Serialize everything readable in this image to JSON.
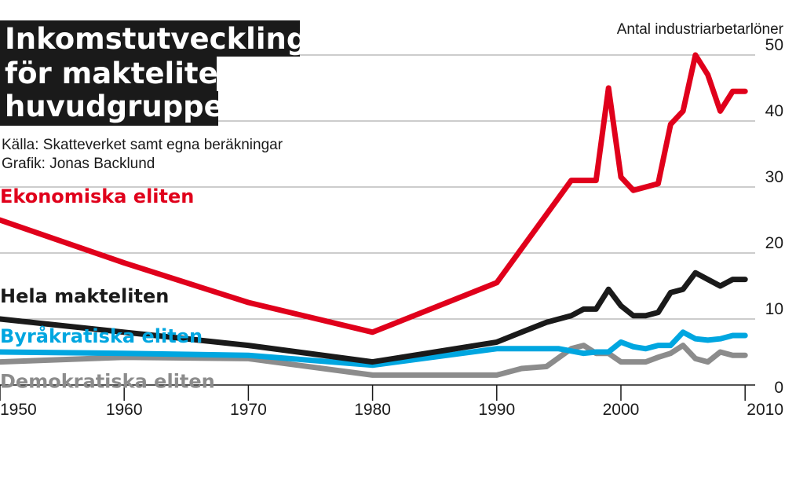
{
  "title_lines": [
    "Inkomstutvecklingen",
    "för maktelitens",
    "huvudgrupper"
  ],
  "source_lines": [
    "Källa: Skatteverket samt egna beräkningar",
    "Grafik: Jonas Backlund"
  ],
  "chart_data": {
    "type": "line",
    "title": "Inkomstutvecklingen för maktelitens huvudgrupper",
    "ylabel": "Antal industriarbetarlöner",
    "xlabel": "",
    "xlim": [
      1950,
      2011
    ],
    "ylim": [
      0,
      50
    ],
    "xticks": [
      "1950",
      "1960",
      "1970",
      "1980",
      "1990",
      "2000",
      "2010"
    ],
    "yticks": [
      "0",
      "10",
      "20",
      "30",
      "40",
      "50"
    ],
    "grid": true,
    "series": [
      {
        "name": "Demokratiska eliten",
        "color": "#8c8c8c",
        "x": [
          1950,
          1960,
          1970,
          1980,
          1990,
          1992,
          1994,
          1996,
          1997,
          1998,
          1999,
          2000,
          2001,
          2002,
          2003,
          2004,
          2005,
          2006,
          2007,
          2008,
          2009,
          2010
        ],
        "y": [
          3.5,
          4.2,
          4.0,
          1.5,
          1.5,
          2.5,
          2.8,
          5.5,
          6.0,
          4.8,
          4.8,
          3.5,
          3.5,
          3.5,
          4.2,
          4.8,
          6.0,
          4.0,
          3.5,
          5.0,
          4.5,
          4.5
        ]
      },
      {
        "name": "Byråkratiska eliten",
        "color": "#00a6e0",
        "x": [
          1950,
          1960,
          1970,
          1980,
          1990,
          1995,
          1997,
          1998,
          1999,
          2000,
          2001,
          2002,
          2003,
          2004,
          2005,
          2006,
          2007,
          2008,
          2009,
          2010
        ],
        "y": [
          5.0,
          4.8,
          4.5,
          3.0,
          5.5,
          5.5,
          4.8,
          5.0,
          5.0,
          6.5,
          5.8,
          5.5,
          6.0,
          6.0,
          8.0,
          7.0,
          6.8,
          7.0,
          7.5,
          7.5
        ]
      },
      {
        "name": "Hela makteliten",
        "color": "#1a1a1a",
        "x": [
          1950,
          1960,
          1970,
          1980,
          1990,
          1992,
          1994,
          1996,
          1997,
          1998,
          1999,
          2000,
          2001,
          2002,
          2003,
          2004,
          2005,
          2006,
          2007,
          2008,
          2009,
          2010
        ],
        "y": [
          10.0,
          8.0,
          6.0,
          3.5,
          6.5,
          8.0,
          9.5,
          10.5,
          11.5,
          11.5,
          14.5,
          12.0,
          10.5,
          10.5,
          11.0,
          14.0,
          14.5,
          17.0,
          16.0,
          15.0,
          16.0,
          16.0
        ]
      },
      {
        "name": "Ekonomiska eliten",
        "color": "#e0001b",
        "x": [
          1950,
          1960,
          1970,
          1980,
          1990,
          1996,
          1997,
          1998,
          1999,
          2000,
          2001,
          2002,
          2003,
          2004,
          2005,
          2006,
          2007,
          2008,
          2009,
          2010
        ],
        "y": [
          25.0,
          18.5,
          12.5,
          8.0,
          15.5,
          31.0,
          31.0,
          31.0,
          45.0,
          31.5,
          29.5,
          30.0,
          30.5,
          39.5,
          41.5,
          50.0,
          47.0,
          41.5,
          44.5,
          44.5
        ]
      }
    ],
    "series_label_positions": [
      "bottom-left",
      "left",
      "left",
      "left"
    ]
  }
}
